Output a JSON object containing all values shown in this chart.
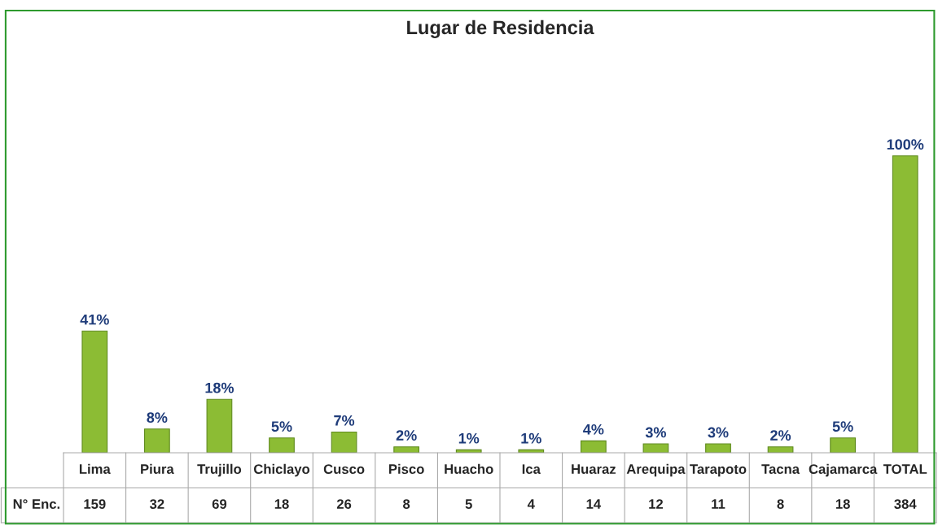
{
  "chart_data": {
    "type": "bar",
    "title": "Lugar de Residencia",
    "categories": [
      "Lima",
      "Piura",
      "Trujillo",
      "Chiclayo",
      "Cusco",
      "Pisco",
      "Huacho",
      "Ica",
      "Huaraz",
      "Arequipa",
      "Tarapoto",
      "Tacna",
      "Cajamarca",
      "TOTAL"
    ],
    "series": [
      {
        "color": "#8cbc34",
        "values": [
          41,
          8,
          18,
          5,
          7,
          2,
          1,
          1,
          4,
          3,
          3,
          2,
          5,
          100
        ],
        "value_labels": [
          "41%",
          "8%",
          "18%",
          "5%",
          "7%",
          "2%",
          "1%",
          "1%",
          "4%",
          "3%",
          "3%",
          "2%",
          "5%",
          "100%"
        ]
      }
    ],
    "annotations": [
      "N° Enc.",
      "159",
      "32",
      "69",
      "18",
      "26",
      "8",
      "5",
      "4",
      "14",
      "12",
      "11",
      "8",
      "18",
      "384"
    ],
    "legend": false
  }
}
